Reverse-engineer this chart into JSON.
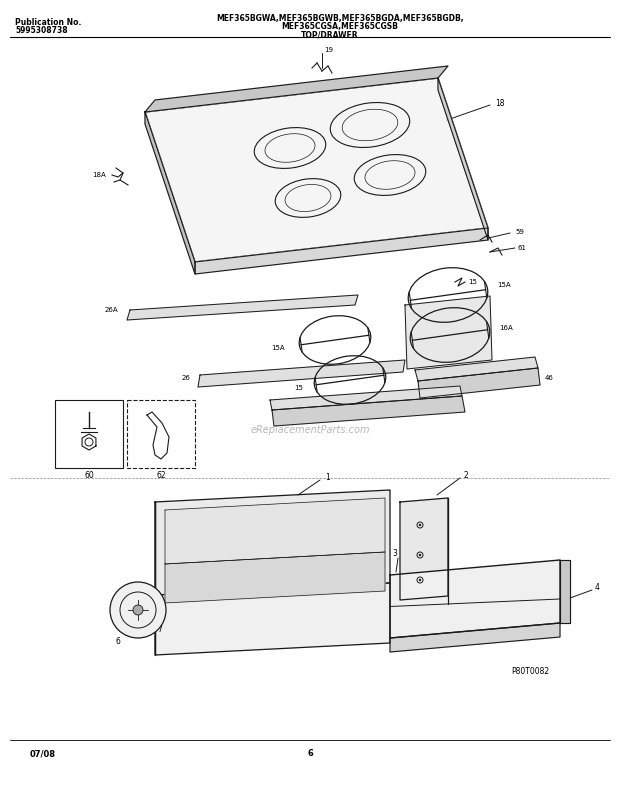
{
  "title_line1": "MEF365BGWA,MEF365BGWB,MEF365BGDA,MEF365BGDB,",
  "title_line2": "MEF365CGSA,MEF365CGSB",
  "title_line3": "TOP/DRAWER",
  "pub_label": "Publication No.",
  "pub_number": "5995308738",
  "date_code": "07/08",
  "page_number": "6",
  "watermark": "eReplacementParts.com",
  "diagram_ref": "P80T0082",
  "bg_color": "#ffffff",
  "line_color": "#1a1a1a",
  "watermark_color": "#b0b0b0",
  "header_separator_color": "#000000",
  "section_separator_color": "#888888"
}
